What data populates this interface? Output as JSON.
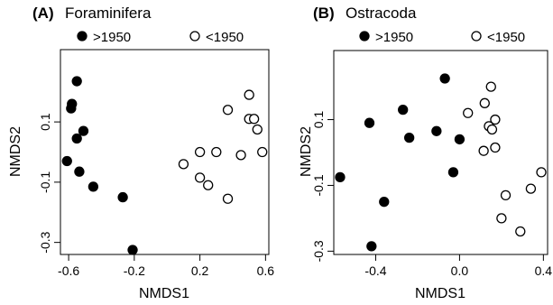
{
  "chart_data": [
    {
      "type": "scatter",
      "panel_letter": "(A)",
      "title": "Foraminifera",
      "xlabel": "NMDS1",
      "ylabel": "NMDS2",
      "xlim": [
        -0.65,
        0.62
      ],
      "ylim": [
        -0.34,
        0.34
      ],
      "xticks": [
        -0.6,
        -0.2,
        0.2,
        0.6
      ],
      "yticks": [
        -0.3,
        -0.1,
        0.1
      ],
      "legend_placement": "top",
      "series": [
        {
          "name": ">1950",
          "marker": "filled-circle",
          "points": [
            [
              -0.55,
              0.235
            ],
            [
              -0.58,
              0.16
            ],
            [
              -0.585,
              0.145
            ],
            [
              -0.51,
              0.07
            ],
            [
              -0.55,
              0.045
            ],
            [
              -0.61,
              -0.03
            ],
            [
              -0.535,
              -0.065
            ],
            [
              -0.45,
              -0.115
            ],
            [
              -0.27,
              -0.15
            ],
            [
              -0.21,
              -0.325
            ]
          ]
        },
        {
          "name": "<1950",
          "marker": "open-circle",
          "points": [
            [
              0.5,
              0.19
            ],
            [
              0.37,
              0.14
            ],
            [
              0.5,
              0.11
            ],
            [
              0.53,
              0.11
            ],
            [
              0.55,
              0.075
            ],
            [
              0.58,
              0.0
            ],
            [
              0.45,
              -0.01
            ],
            [
              0.3,
              0.0
            ],
            [
              0.2,
              0.0
            ],
            [
              0.1,
              -0.04
            ],
            [
              0.2,
              -0.085
            ],
            [
              0.25,
              -0.11
            ],
            [
              0.37,
              -0.155
            ]
          ]
        }
      ]
    },
    {
      "type": "scatter",
      "panel_letter": "(B)",
      "title": "Ostracoda",
      "xlabel": "NMDS1",
      "ylabel": "NMDS2",
      "xlim": [
        -0.6,
        0.42
      ],
      "ylim": [
        -0.31,
        0.31
      ],
      "xticks": [
        -0.4,
        0.0,
        0.4
      ],
      "yticks": [
        -0.3,
        -0.1,
        0.1
      ],
      "legend_placement": "top",
      "series": [
        {
          "name": ">1950",
          "marker": "filled-circle",
          "points": [
            [
              -0.07,
              0.225
            ],
            [
              -0.27,
              0.13
            ],
            [
              -0.43,
              0.09
            ],
            [
              -0.11,
              0.065
            ],
            [
              -0.24,
              0.045
            ],
            [
              0.0,
              0.04
            ],
            [
              -0.57,
              -0.075
            ],
            [
              -0.03,
              -0.06
            ],
            [
              -0.36,
              -0.15
            ],
            [
              -0.42,
              -0.285
            ]
          ]
        },
        {
          "name": "<1950",
          "marker": "open-circle",
          "points": [
            [
              0.15,
              0.2
            ],
            [
              0.12,
              0.15
            ],
            [
              0.04,
              0.12
            ],
            [
              0.17,
              0.1
            ],
            [
              0.14,
              0.08
            ],
            [
              0.155,
              0.07
            ],
            [
              0.17,
              0.015
            ],
            [
              0.115,
              0.005
            ],
            [
              0.39,
              -0.06
            ],
            [
              0.34,
              -0.11
            ],
            [
              0.22,
              -0.13
            ],
            [
              0.2,
              -0.2
            ],
            [
              0.29,
              -0.24
            ]
          ]
        }
      ]
    }
  ]
}
